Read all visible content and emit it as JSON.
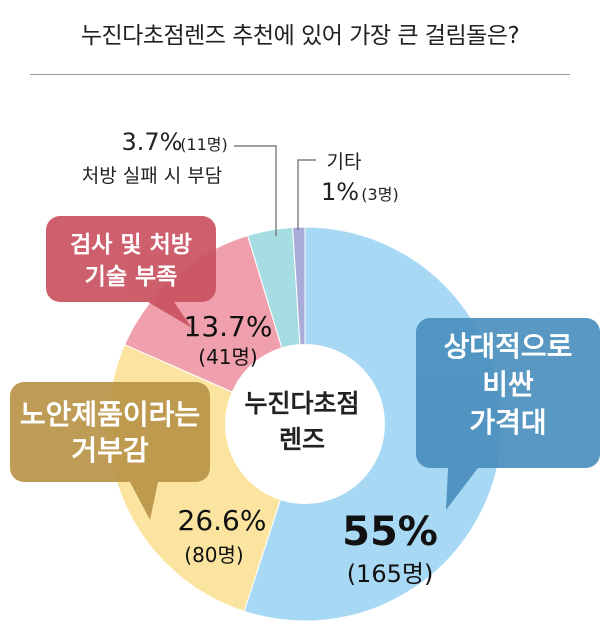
{
  "title": "누진다초점렌즈 추천에 있어 가장 큰 걸림돌은?",
  "center_label": [
    "누진다초점",
    "렌즈"
  ],
  "chart_data": {
    "type": "pie",
    "title": "누진다초점렌즈 추천에 있어 가장 큰 걸림돌은?",
    "slices": [
      {
        "label": "상대적으로 비싼 가격대",
        "label_lines": [
          "상대적으로",
          "비싼",
          "가격대"
        ],
        "percent": 55,
        "percent_text": "55%",
        "count": 165,
        "count_text": "(165명)",
        "color": "#a8d9f4",
        "callout_color": "#4a8fbd"
      },
      {
        "label": "노안제품이라는 거부감",
        "label_lines": [
          "노안제품이라는",
          "거부감"
        ],
        "percent": 26.6,
        "percent_text": "26.6%",
        "count": 80,
        "count_text": "(80명)",
        "color": "#fbe3a0",
        "callout_color": "#b99448"
      },
      {
        "label": "검사 및 처방 기술 부족",
        "label_lines": [
          "검사 및 처방",
          "기술 부족"
        ],
        "percent": 13.7,
        "percent_text": "13.7%",
        "count": 41,
        "count_text": "(41명)",
        "color": "#f0a0ac",
        "callout_color": "#c9525f"
      },
      {
        "label": "처방 실패 시 부담",
        "label_lines": [
          "처방 실패 시 부담"
        ],
        "percent": 3.7,
        "percent_text": "3.7%",
        "count": 11,
        "count_text": "(11명)",
        "color": "#a6dde2",
        "callout_color": ""
      },
      {
        "label": "기타",
        "label_lines": [
          "기타"
        ],
        "percent": 1,
        "percent_text": "1%",
        "count": 3,
        "count_text": "(3명)",
        "color": "#a9acd9",
        "callout_color": ""
      }
    ]
  }
}
